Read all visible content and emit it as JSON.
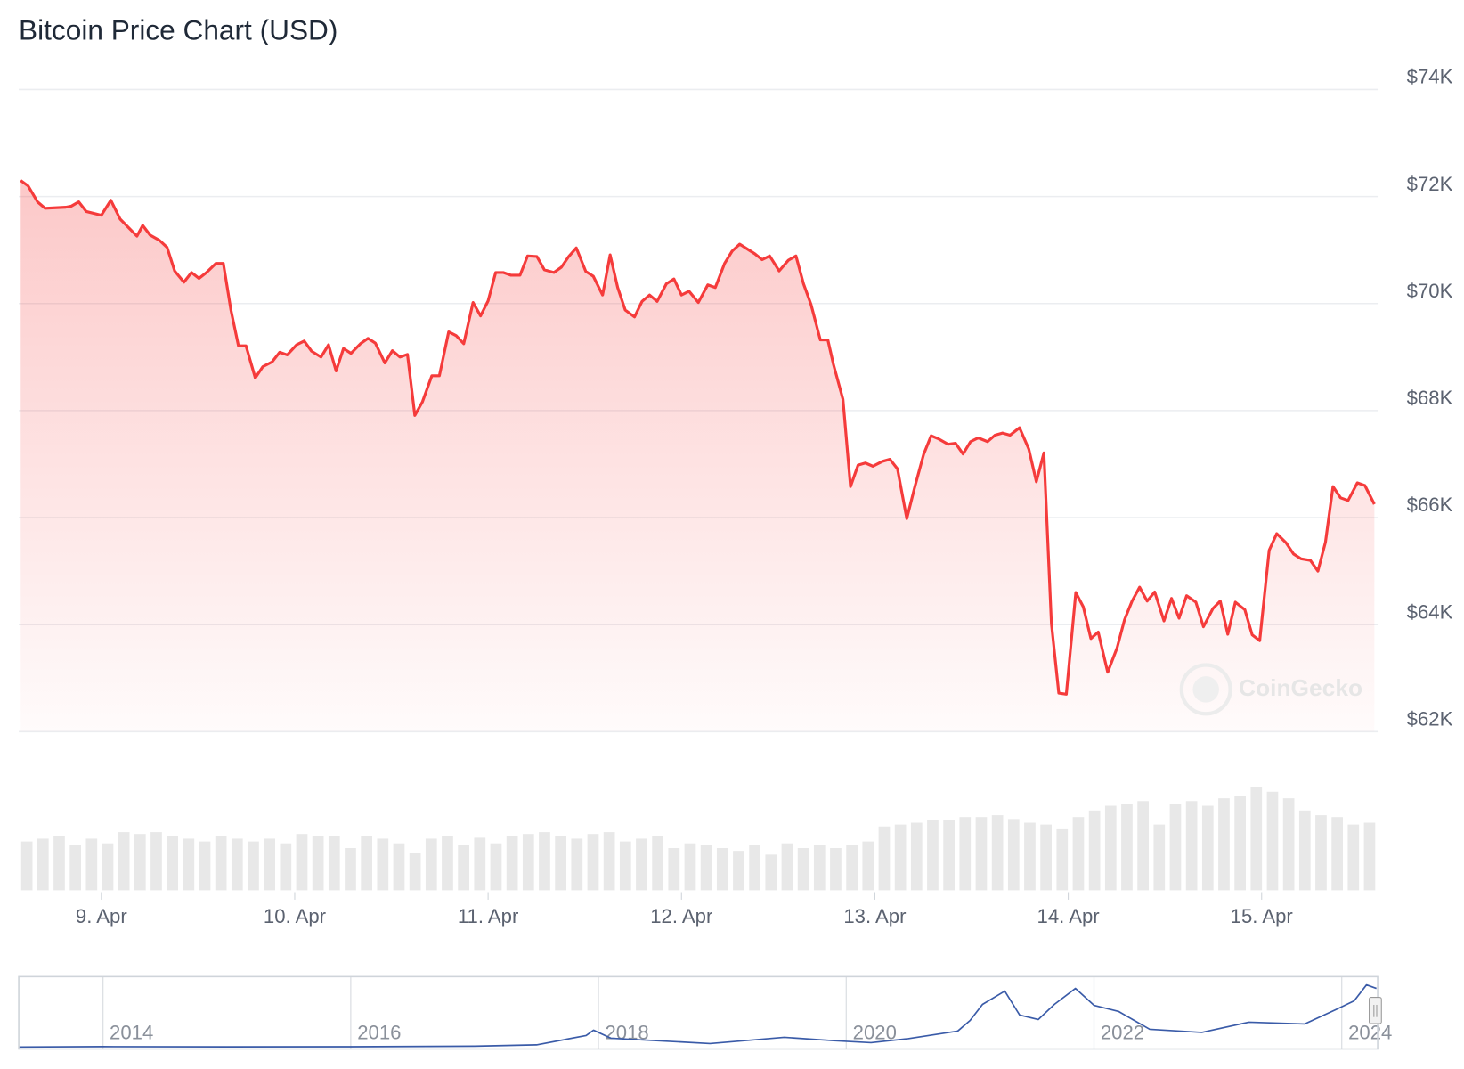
{
  "chart_data": [
    {
      "type": "line",
      "title": "Bitcoin Price Chart (USD)",
      "watermark": "CoinGecko",
      "color": "#f53b3b",
      "xlim": [
        8.573,
        15.6
      ],
      "xticks": [
        {
          "value": 9,
          "label": "9. Apr"
        },
        {
          "value": 10,
          "label": "10. Apr"
        },
        {
          "value": 11,
          "label": "11. Apr"
        },
        {
          "value": 12,
          "label": "12. Apr"
        },
        {
          "value": 13,
          "label": "13. Apr"
        },
        {
          "value": 14,
          "label": "14. Apr"
        },
        {
          "value": 15,
          "label": "15. Apr"
        }
      ],
      "ylim": [
        62000,
        74000
      ],
      "yticks": [
        {
          "value": 62000,
          "label": "$62K"
        },
        {
          "value": 64000,
          "label": "$64K"
        },
        {
          "value": 66000,
          "label": "$66K"
        },
        {
          "value": 68000,
          "label": "$68K"
        },
        {
          "value": 70000,
          "label": "$70K"
        },
        {
          "value": 72000,
          "label": "$72K"
        },
        {
          "value": 74000,
          "label": "$74K"
        }
      ],
      "grid": true,
      "x": [
        8.583,
        8.621,
        8.67,
        8.709,
        8.816,
        8.845,
        8.883,
        8.922,
        9.0,
        9.049,
        9.097,
        9.184,
        9.214,
        9.252,
        9.301,
        9.34,
        9.379,
        9.427,
        9.466,
        9.505,
        9.544,
        9.592,
        9.631,
        9.67,
        9.709,
        9.748,
        9.796,
        9.835,
        9.883,
        9.922,
        9.961,
        10.01,
        10.049,
        10.087,
        10.136,
        10.175,
        10.214,
        10.252,
        10.291,
        10.34,
        10.379,
        10.417,
        10.466,
        10.505,
        10.544,
        10.583,
        10.621,
        10.66,
        10.709,
        10.748,
        10.796,
        10.835,
        10.874,
        10.922,
        10.961,
        11.0,
        11.039,
        11.078,
        11.117,
        11.165,
        11.204,
        11.252,
        11.291,
        11.34,
        11.379,
        11.417,
        11.456,
        11.505,
        11.544,
        11.592,
        11.631,
        11.67,
        11.709,
        11.757,
        11.796,
        11.835,
        11.874,
        11.922,
        11.961,
        12.0,
        12.039,
        12.087,
        12.136,
        12.175,
        12.223,
        12.262,
        12.301,
        12.34,
        12.379,
        12.417,
        12.456,
        12.505,
        12.553,
        12.592,
        12.631,
        12.67,
        12.718,
        12.757,
        12.786,
        12.835,
        12.874,
        12.913,
        12.951,
        12.99,
        13.039,
        13.078,
        13.117,
        13.165,
        13.204,
        13.252,
        13.291,
        13.33,
        13.379,
        13.417,
        13.456,
        13.495,
        13.534,
        13.583,
        13.621,
        13.66,
        13.699,
        13.748,
        13.796,
        13.835,
        13.874,
        13.913,
        13.951,
        13.99,
        14.039,
        14.078,
        14.117,
        14.155,
        14.204,
        14.252,
        14.291,
        14.33,
        14.369,
        14.408,
        14.447,
        14.495,
        14.534,
        14.573,
        14.612,
        14.66,
        14.699,
        14.748,
        14.786,
        14.825,
        14.864,
        14.913,
        14.951,
        14.99,
        15.039,
        15.078,
        15.126,
        15.165,
        15.204,
        15.252,
        15.291,
        15.33,
        15.369,
        15.408,
        15.447,
        15.495,
        15.534,
        15.583
      ],
      "values": [
        72300,
        72200,
        71900,
        71780,
        71800,
        71820,
        71900,
        71720,
        71650,
        71930,
        71580,
        71260,
        71460,
        71280,
        71180,
        71050,
        70610,
        70400,
        70580,
        70470,
        70580,
        70750,
        70750,
        69880,
        69210,
        69210,
        68610,
        68820,
        68910,
        69090,
        69040,
        69230,
        69300,
        69110,
        69000,
        69230,
        68740,
        69160,
        69070,
        69250,
        69350,
        69260,
        68890,
        69120,
        69000,
        69050,
        67910,
        68160,
        68650,
        68650,
        69470,
        69400,
        69250,
        70020,
        69770,
        70050,
        70580,
        70580,
        70530,
        70530,
        70890,
        70880,
        70630,
        70580,
        70680,
        70880,
        71040,
        70600,
        70510,
        70160,
        70910,
        70300,
        69880,
        69750,
        70040,
        70160,
        70040,
        70370,
        70460,
        70160,
        70230,
        70020,
        70350,
        70300,
        70750,
        70980,
        71110,
        71020,
        70930,
        70820,
        70890,
        70610,
        70810,
        70890,
        70370,
        69980,
        69320,
        69320,
        68860,
        68210,
        66580,
        66980,
        67020,
        66960,
        67050,
        67090,
        66910,
        65980,
        66540,
        67180,
        67530,
        67470,
        67370,
        67390,
        67190,
        67420,
        67490,
        67420,
        67540,
        67580,
        67540,
        67680,
        67280,
        66670,
        67210,
        64020,
        62720,
        62700,
        64600,
        64330,
        63740,
        63860,
        63110,
        63560,
        64090,
        64440,
        64700,
        64440,
        64610,
        64070,
        64490,
        64120,
        64540,
        64420,
        63960,
        64300,
        64440,
        63820,
        64420,
        64280,
        63810,
        63700,
        65390,
        65700,
        65530,
        65320,
        65230,
        65200,
        65000,
        65540,
        66580,
        66370,
        66320,
        66650,
        66600,
        66250
      ]
    },
    {
      "type": "bar",
      "color": "#e8e8e8",
      "ylim": [
        0,
        120
      ],
      "values": [
        52,
        55,
        58,
        48,
        55,
        50,
        62,
        60,
        62,
        58,
        55,
        52,
        58,
        55,
        52,
        55,
        50,
        60,
        58,
        58,
        45,
        58,
        55,
        50,
        40,
        55,
        58,
        48,
        56,
        50,
        58,
        60,
        62,
        58,
        55,
        60,
        62,
        52,
        55,
        58,
        45,
        50,
        48,
        45,
        42,
        48,
        38,
        50,
        45,
        48,
        45,
        48,
        52,
        68,
        70,
        72,
        75,
        75,
        78,
        78,
        80,
        76,
        72,
        70,
        65,
        78,
        85,
        90,
        92,
        95,
        70,
        92,
        95,
        90,
        98,
        100,
        110,
        105,
        98,
        85,
        80,
        78,
        70,
        72
      ]
    },
    {
      "type": "line",
      "color": "#3a5ba8",
      "xlim": [
        2013.32,
        2024.29
      ],
      "xticks": [
        2014,
        2016,
        2018,
        2020,
        2022,
        2024
      ],
      "ylim": [
        0,
        75000
      ],
      "x": [
        2013.32,
        2014,
        2015,
        2016,
        2017,
        2017.5,
        2017.9,
        2017.96,
        2018.1,
        2018.5,
        2018.9,
        2019.5,
        2019.9,
        2020.2,
        2020.5,
        2020.9,
        2021.0,
        2021.1,
        2021.28,
        2021.4,
        2021.55,
        2021.68,
        2021.85,
        2022.0,
        2022.2,
        2022.45,
        2022.87,
        2023.25,
        2023.7,
        2023.95,
        2024.1,
        2024.2,
        2024.28
      ],
      "values": [
        100,
        500,
        300,
        400,
        1000,
        2500,
        13000,
        19000,
        10000,
        7000,
        4000,
        11000,
        7200,
        5000,
        9500,
        18000,
        30000,
        48000,
        63000,
        36000,
        31000,
        48000,
        66000,
        47000,
        40000,
        20000,
        16500,
        28000,
        26000,
        42000,
        52000,
        70000,
        66000
      ]
    }
  ]
}
